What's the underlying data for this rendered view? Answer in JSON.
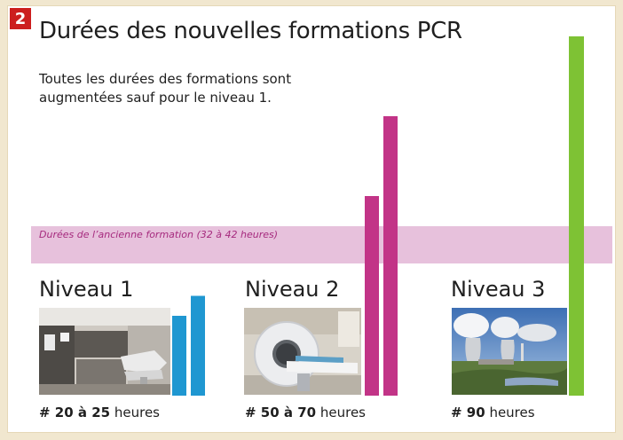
{
  "badge": "2",
  "title": "Durées des nouvelles formations PCR",
  "subtitle_line1": "Toutes les durées des formations sont",
  "subtitle_line2": "augmentées sauf pour le niveau 1.",
  "band_label": "Durées de l’ancienne formation (32 à 42 heures)",
  "colors": {
    "band": "#e7c1dc",
    "niveau1": "#1f97d1",
    "niveau2": "#c23487",
    "niveau3": "#7ec234",
    "badge": "#cc1e1e"
  },
  "levels": [
    {
      "name": "Niveau 1",
      "hours_value": "# 20 à 25",
      "hours_unit": " heures",
      "photo": "dental-office-photo"
    },
    {
      "name": "Niveau 2",
      "hours_value": "# 50 à 70",
      "hours_unit": " heures",
      "photo": "ct-scanner-photo"
    },
    {
      "name": "Niveau 3",
      "hours_value": "# 90",
      "hours_unit": " heures",
      "photo": "nuclear-plant-photo"
    }
  ],
  "chart_data": {
    "type": "bar",
    "title": "Durées des nouvelles formations PCR",
    "categories": [
      "Niveau 1",
      "Niveau 1",
      "Niveau 2",
      "Niveau 2",
      "Niveau 3"
    ],
    "values": [
      20,
      25,
      50,
      70,
      90
    ],
    "reference_band": {
      "min": 32,
      "max": 42,
      "label": "Durées de l’ancienne formation (32 à 42 heures)"
    },
    "ylim": [
      0,
      90
    ]
  }
}
